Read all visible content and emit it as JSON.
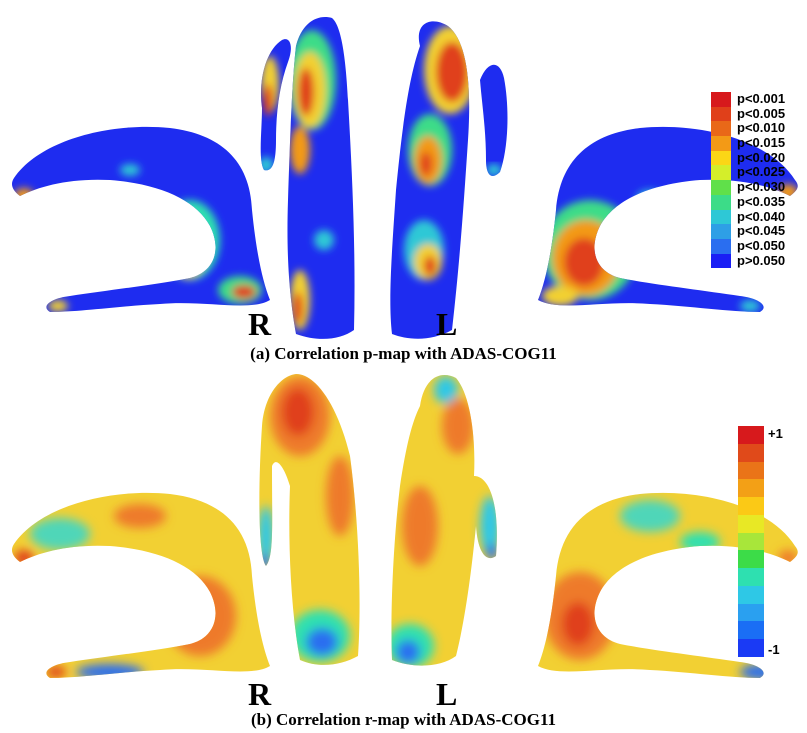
{
  "panel_a": {
    "caption": "(a) Correlation p-map with ADAS-COG11",
    "right_label": "R",
    "left_label": "L",
    "legend": [
      {
        "label": "p<0.001",
        "color": "#d7191c"
      },
      {
        "label": "p<0.005",
        "color": "#e0401a"
      },
      {
        "label": "p<0.010",
        "color": "#e96818"
      },
      {
        "label": "p<0.015",
        "color": "#f39a16"
      },
      {
        "label": "p<0.020",
        "color": "#fbd616"
      },
      {
        "label": "p<0.025",
        "color": "#d4ee2a"
      },
      {
        "label": "p<0.030",
        "color": "#60e04a"
      },
      {
        "label": "p<0.035",
        "color": "#3cdc88"
      },
      {
        "label": "p<0.040",
        "color": "#2ec8d6"
      },
      {
        "label": "p<0.045",
        "color": "#2e9fe6"
      },
      {
        "label": "p<0.050",
        "color": "#2a6ef0"
      },
      {
        "label": "p>0.050",
        "color": "#1a1ef5"
      }
    ]
  },
  "panel_b": {
    "caption": "(b) Correlation r-map with ADAS-COG11",
    "right_label": "R",
    "left_label": "L",
    "legend_max": "+1",
    "legend_min": "-1",
    "legend_colors": [
      "#d7191c",
      "#e04a1a",
      "#ea7418",
      "#f3a016",
      "#fbc916",
      "#e8e825",
      "#a8e63a",
      "#3cdc48",
      "#2ee0b0",
      "#2ec8e6",
      "#2aa0f0",
      "#1a6ef5",
      "#1a3af5"
    ]
  },
  "colors": {
    "background": "#ffffff",
    "insignificant_blue": "#1e2cf0",
    "surface_yellow": "#f2d033",
    "surface_orange": "#ee7a2a"
  }
}
